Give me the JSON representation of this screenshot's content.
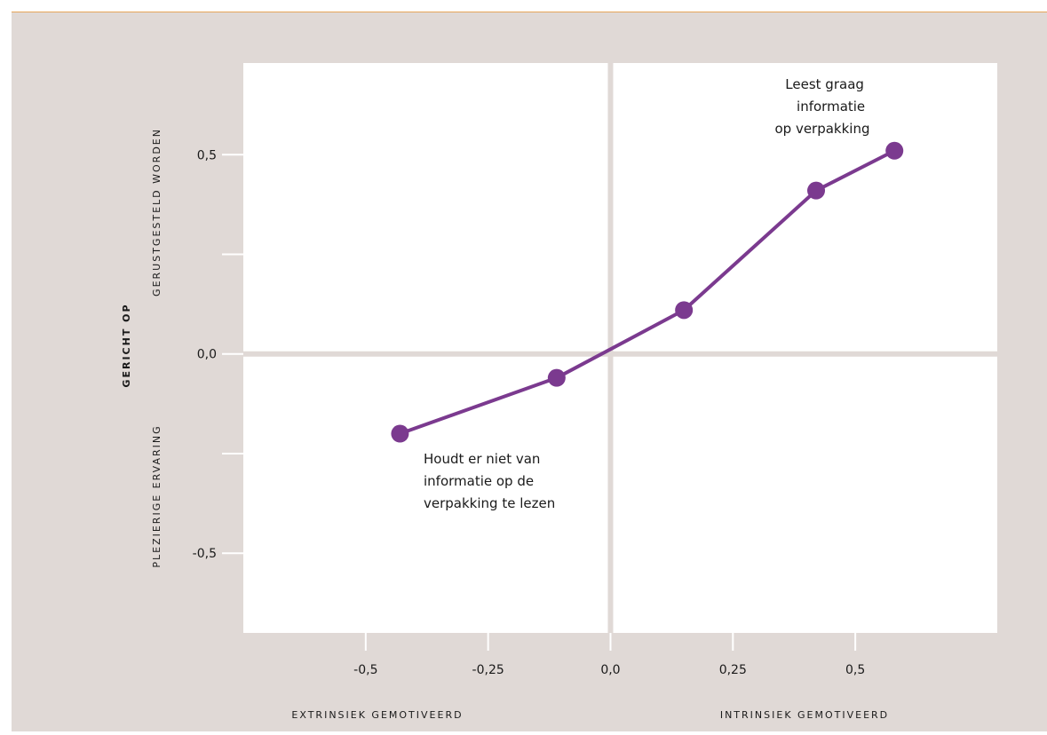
{
  "chart_data": {
    "type": "line",
    "x": [
      -0.43,
      -0.11,
      0.15,
      0.42,
      0.58
    ],
    "y": [
      -0.2,
      -0.06,
      0.11,
      0.41,
      0.51
    ],
    "xlim": [
      -0.75,
      0.79
    ],
    "ylim": [
      -0.7,
      0.73
    ],
    "xticks": [
      -0.5,
      -0.25,
      0.0,
      0.25,
      0.5
    ],
    "xtick_labels": [
      "-0,5",
      "-0,25",
      "0,0",
      "0,25",
      "0,5"
    ],
    "yticks": [
      0.5,
      0.25,
      0.0,
      -0.25,
      -0.5
    ],
    "ytick_labels": [
      "0,5",
      "",
      "0,0",
      "",
      "-0,5"
    ],
    "xlabel_left": "EXTRINSIEK GEMOTIVEERD",
    "xlabel_right": "INTRINSIEK GEMOTIVEERD",
    "ylabel_main": "GERICHT OP",
    "ylabel_top": "GERUSTGESTELD WORDEN",
    "ylabel_bottom": "PLEZIERIGE ERVARING",
    "annotation_top": [
      "Leest graag",
      "informatie",
      "op verpakking"
    ],
    "annotation_bottom": [
      "Houdt er niet van",
      "informatie op de",
      "verpakking te lezen"
    ],
    "colors": {
      "line": "#7b3a8f",
      "background": "#e0d9d6",
      "plot": "#ffffff",
      "axis": "#e0d9d6",
      "frame_top": "#e6a65a"
    }
  }
}
